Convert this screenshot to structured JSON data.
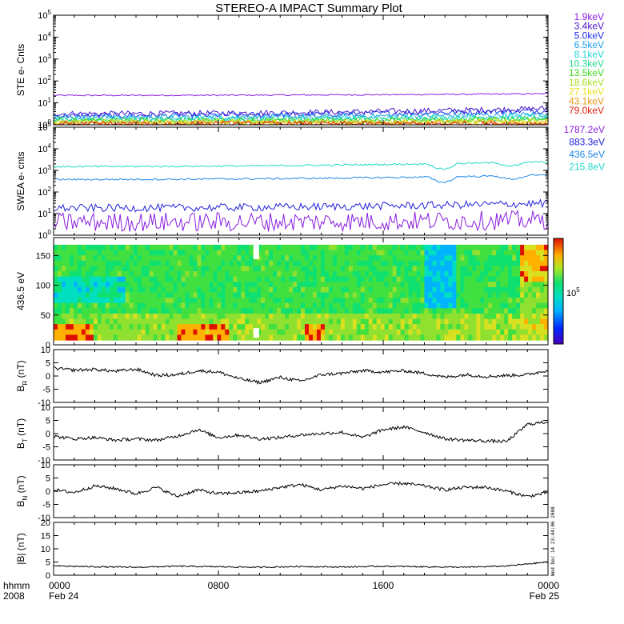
{
  "title": "STEREO-A IMPACT Summary Plot",
  "x_axis": {
    "label_top": "hhmm",
    "label_bottom": "2008",
    "ticks": [
      {
        "time": "0000",
        "date": "Feb 24",
        "hour": 0
      },
      {
        "time": "0800",
        "date": "",
        "hour": 8
      },
      {
        "time": "1600",
        "date": "",
        "hour": 16
      },
      {
        "time": "0000",
        "date": "Feb 25",
        "hour": 24
      }
    ]
  },
  "timestamp": "Wed Dec 14 23:44:06 2008",
  "legend": {
    "ste": [
      {
        "label": "1.9keV",
        "color": "#8a1fe0"
      },
      {
        "label": "3.4keV",
        "color": "#4b16c9"
      },
      {
        "label": "5.0keV",
        "color": "#1f2fe8"
      },
      {
        "label": "6.5keV",
        "color": "#1ea0e8"
      },
      {
        "label": "8.1keV",
        "color": "#22d8d8"
      },
      {
        "label": "10.3keV",
        "color": "#20d890"
      },
      {
        "label": "13.5keV",
        "color": "#3cd820"
      },
      {
        "label": "18.6keV",
        "color": "#a8e020"
      },
      {
        "label": "27.1keV",
        "color": "#e8e020"
      },
      {
        "label": "43.1keV",
        "color": "#e89a10"
      },
      {
        "label": "79.0keV",
        "color": "#e02010"
      }
    ],
    "swea": [
      {
        "label": "1787.2eV",
        "color": "#8a1fe0"
      },
      {
        "label": "883.3eV",
        "color": "#2020d8"
      },
      {
        "label": "436.5eV",
        "color": "#1e88e8"
      },
      {
        "label": "215.8eV",
        "color": "#22d8c8"
      }
    ]
  },
  "panels": {
    "ste": {
      "ylabel": "STE e- Cnts"
    },
    "swea": {
      "ylabel": "SWEA e- cnts"
    },
    "pad": {
      "ylabel": "436.5 eV",
      "colorbar_label": "10",
      "colorbar_exp": "5"
    },
    "br": {
      "ylabel": "B",
      "sub": "R",
      "unit": " (nT)"
    },
    "bt": {
      "ylabel": "B",
      "sub": "T",
      "unit": " (nT)"
    },
    "bn": {
      "ylabel": "B",
      "sub": "N",
      "unit": " (nT)"
    },
    "bmag": {
      "ylabel": "|B| (nT)"
    }
  },
  "chart_data": [
    {
      "type": "line",
      "name": "STE",
      "log_y": true,
      "ylim": [
        1,
        100000
      ],
      "yticks": [
        {
          "base": "10",
          "exp": "0"
        },
        {
          "base": "10",
          "exp": "1"
        },
        {
          "base": "10",
          "exp": "2"
        },
        {
          "base": "10",
          "exp": "3"
        },
        {
          "base": "10",
          "exp": "4"
        },
        {
          "base": "10",
          "exp": "5"
        }
      ],
      "xlim": [
        0,
        24
      ],
      "series_levels": [
        {
          "label": "1.9keV",
          "start": 22,
          "end": 26
        },
        {
          "label": "3.4keV",
          "start": 3.2,
          "end": 5.5
        },
        {
          "label": "5.0keV",
          "start": 2.6,
          "end": 4.5
        },
        {
          "label": "6.5keV",
          "start": 2.2,
          "end": 3.0
        },
        {
          "label": "8.1keV",
          "start": 1.9,
          "end": 2.4
        },
        {
          "label": "10.3keV",
          "start": 1.7,
          "end": 2.0
        },
        {
          "label": "13.5keV",
          "start": 1.5,
          "end": 1.7
        },
        {
          "label": "18.6keV",
          "start": 1.35,
          "end": 1.5
        },
        {
          "label": "27.1keV",
          "start": 1.25,
          "end": 1.35
        },
        {
          "label": "43.1keV",
          "start": 1.15,
          "end": 1.2
        },
        {
          "label": "79.0keV",
          "start": 1.08,
          "end": 1.1
        }
      ]
    },
    {
      "type": "line",
      "name": "SWEA",
      "log_y": true,
      "ylim": [
        1,
        100000
      ],
      "yticks": [
        {
          "base": "10",
          "exp": "0"
        },
        {
          "base": "10",
          "exp": "1"
        },
        {
          "base": "10",
          "exp": "2"
        },
        {
          "base": "10",
          "exp": "3"
        },
        {
          "base": "10",
          "exp": "4"
        },
        {
          "base": "10",
          "exp": "5"
        }
      ],
      "xlim": [
        0,
        24
      ],
      "series_levels": [
        {
          "label": "215.8eV",
          "start": 1500,
          "end": 2500
        },
        {
          "label": "436.5eV",
          "start": 380,
          "end": 600
        },
        {
          "label": "883.3eV",
          "start": 18,
          "end": 30
        },
        {
          "label": "1787.2eV",
          "start": 4,
          "end": 5
        }
      ]
    },
    {
      "type": "heatmap",
      "name": "436.5 eV pitch angle",
      "ylim": [
        0,
        180
      ],
      "xlim": [
        0,
        24
      ],
      "yticks": [
        "0",
        "50",
        "100",
        "150"
      ]
    },
    {
      "type": "line",
      "name": "BR",
      "ylim": [
        -10,
        10
      ],
      "yticks": [
        "-10",
        "-5",
        "0",
        "5",
        "10"
      ],
      "xlim": [
        0,
        24
      ],
      "points": [
        [
          0,
          3
        ],
        [
          1,
          2.2
        ],
        [
          2,
          2.5
        ],
        [
          3,
          1.8
        ],
        [
          4,
          2.6
        ],
        [
          5,
          0.2
        ],
        [
          6,
          0.5
        ],
        [
          7,
          2
        ],
        [
          8,
          1.5
        ],
        [
          9,
          -1
        ],
        [
          10,
          -2.5
        ],
        [
          11,
          -0.5
        ],
        [
          12,
          -2
        ],
        [
          13,
          0.5
        ],
        [
          14,
          1
        ],
        [
          15,
          2
        ],
        [
          16,
          1.5
        ],
        [
          17,
          2
        ],
        [
          18,
          1
        ],
        [
          19,
          -0.5
        ],
        [
          20,
          0.5
        ],
        [
          21,
          -0.2
        ],
        [
          22,
          0.2
        ],
        [
          23,
          0.5
        ],
        [
          24,
          2.2
        ]
      ]
    },
    {
      "type": "line",
      "name": "BT",
      "ylim": [
        -10,
        10
      ],
      "yticks": [
        "-10",
        "-5",
        "0",
        "5",
        "10"
      ],
      "xlim": [
        0,
        24
      ],
      "points": [
        [
          0,
          -1
        ],
        [
          1,
          -2
        ],
        [
          2,
          -1.5
        ],
        [
          3,
          -2.5
        ],
        [
          4,
          -2
        ],
        [
          5,
          -2.5
        ],
        [
          6,
          -1
        ],
        [
          7,
          1.5
        ],
        [
          8,
          -1.5
        ],
        [
          9,
          -0.5
        ],
        [
          10,
          -2
        ],
        [
          11,
          -1.5
        ],
        [
          12,
          -0.5
        ],
        [
          13,
          0
        ],
        [
          14,
          0.5
        ],
        [
          15,
          -1.5
        ],
        [
          16,
          1.5
        ],
        [
          17,
          2.5
        ],
        [
          18,
          0.5
        ],
        [
          19,
          -2
        ],
        [
          20,
          -2.5
        ],
        [
          21,
          -2.8
        ],
        [
          22,
          -3
        ],
        [
          23,
          3.5
        ],
        [
          24,
          4.5
        ]
      ]
    },
    {
      "type": "line",
      "name": "BN",
      "ylim": [
        -10,
        10
      ],
      "yticks": [
        "-10",
        "-5",
        "0",
        "5",
        "10"
      ],
      "xlim": [
        0,
        24
      ],
      "points": [
        [
          0,
          0.5
        ],
        [
          1,
          -0.5
        ],
        [
          2,
          2
        ],
        [
          3,
          1
        ],
        [
          4,
          -1
        ],
        [
          5,
          1.5
        ],
        [
          6,
          -2
        ],
        [
          7,
          0.5
        ],
        [
          8,
          -1
        ],
        [
          9,
          -0.5
        ],
        [
          10,
          0
        ],
        [
          11,
          1.5
        ],
        [
          12,
          2.5
        ],
        [
          13,
          0.5
        ],
        [
          14,
          2
        ],
        [
          15,
          1
        ],
        [
          16,
          2.5
        ],
        [
          17,
          3
        ],
        [
          18,
          2
        ],
        [
          19,
          0.5
        ],
        [
          20,
          1.5
        ],
        [
          21,
          1.5
        ],
        [
          22,
          0
        ],
        [
          23,
          -2
        ],
        [
          24,
          -0.5
        ]
      ]
    },
    {
      "type": "line",
      "name": "|B|",
      "ylim": [
        0,
        20
      ],
      "yticks": [
        "0",
        "5",
        "10",
        "15",
        "20"
      ],
      "xlim": [
        0,
        24
      ],
      "points": [
        [
          0,
          3.5
        ],
        [
          2,
          3.2
        ],
        [
          4,
          3.0
        ],
        [
          6,
          3.4
        ],
        [
          8,
          3.2
        ],
        [
          10,
          3.0
        ],
        [
          12,
          3.3
        ],
        [
          14,
          3.1
        ],
        [
          16,
          3.4
        ],
        [
          18,
          3.2
        ],
        [
          20,
          3.0
        ],
        [
          22,
          3.5
        ],
        [
          24,
          5
        ]
      ]
    }
  ]
}
